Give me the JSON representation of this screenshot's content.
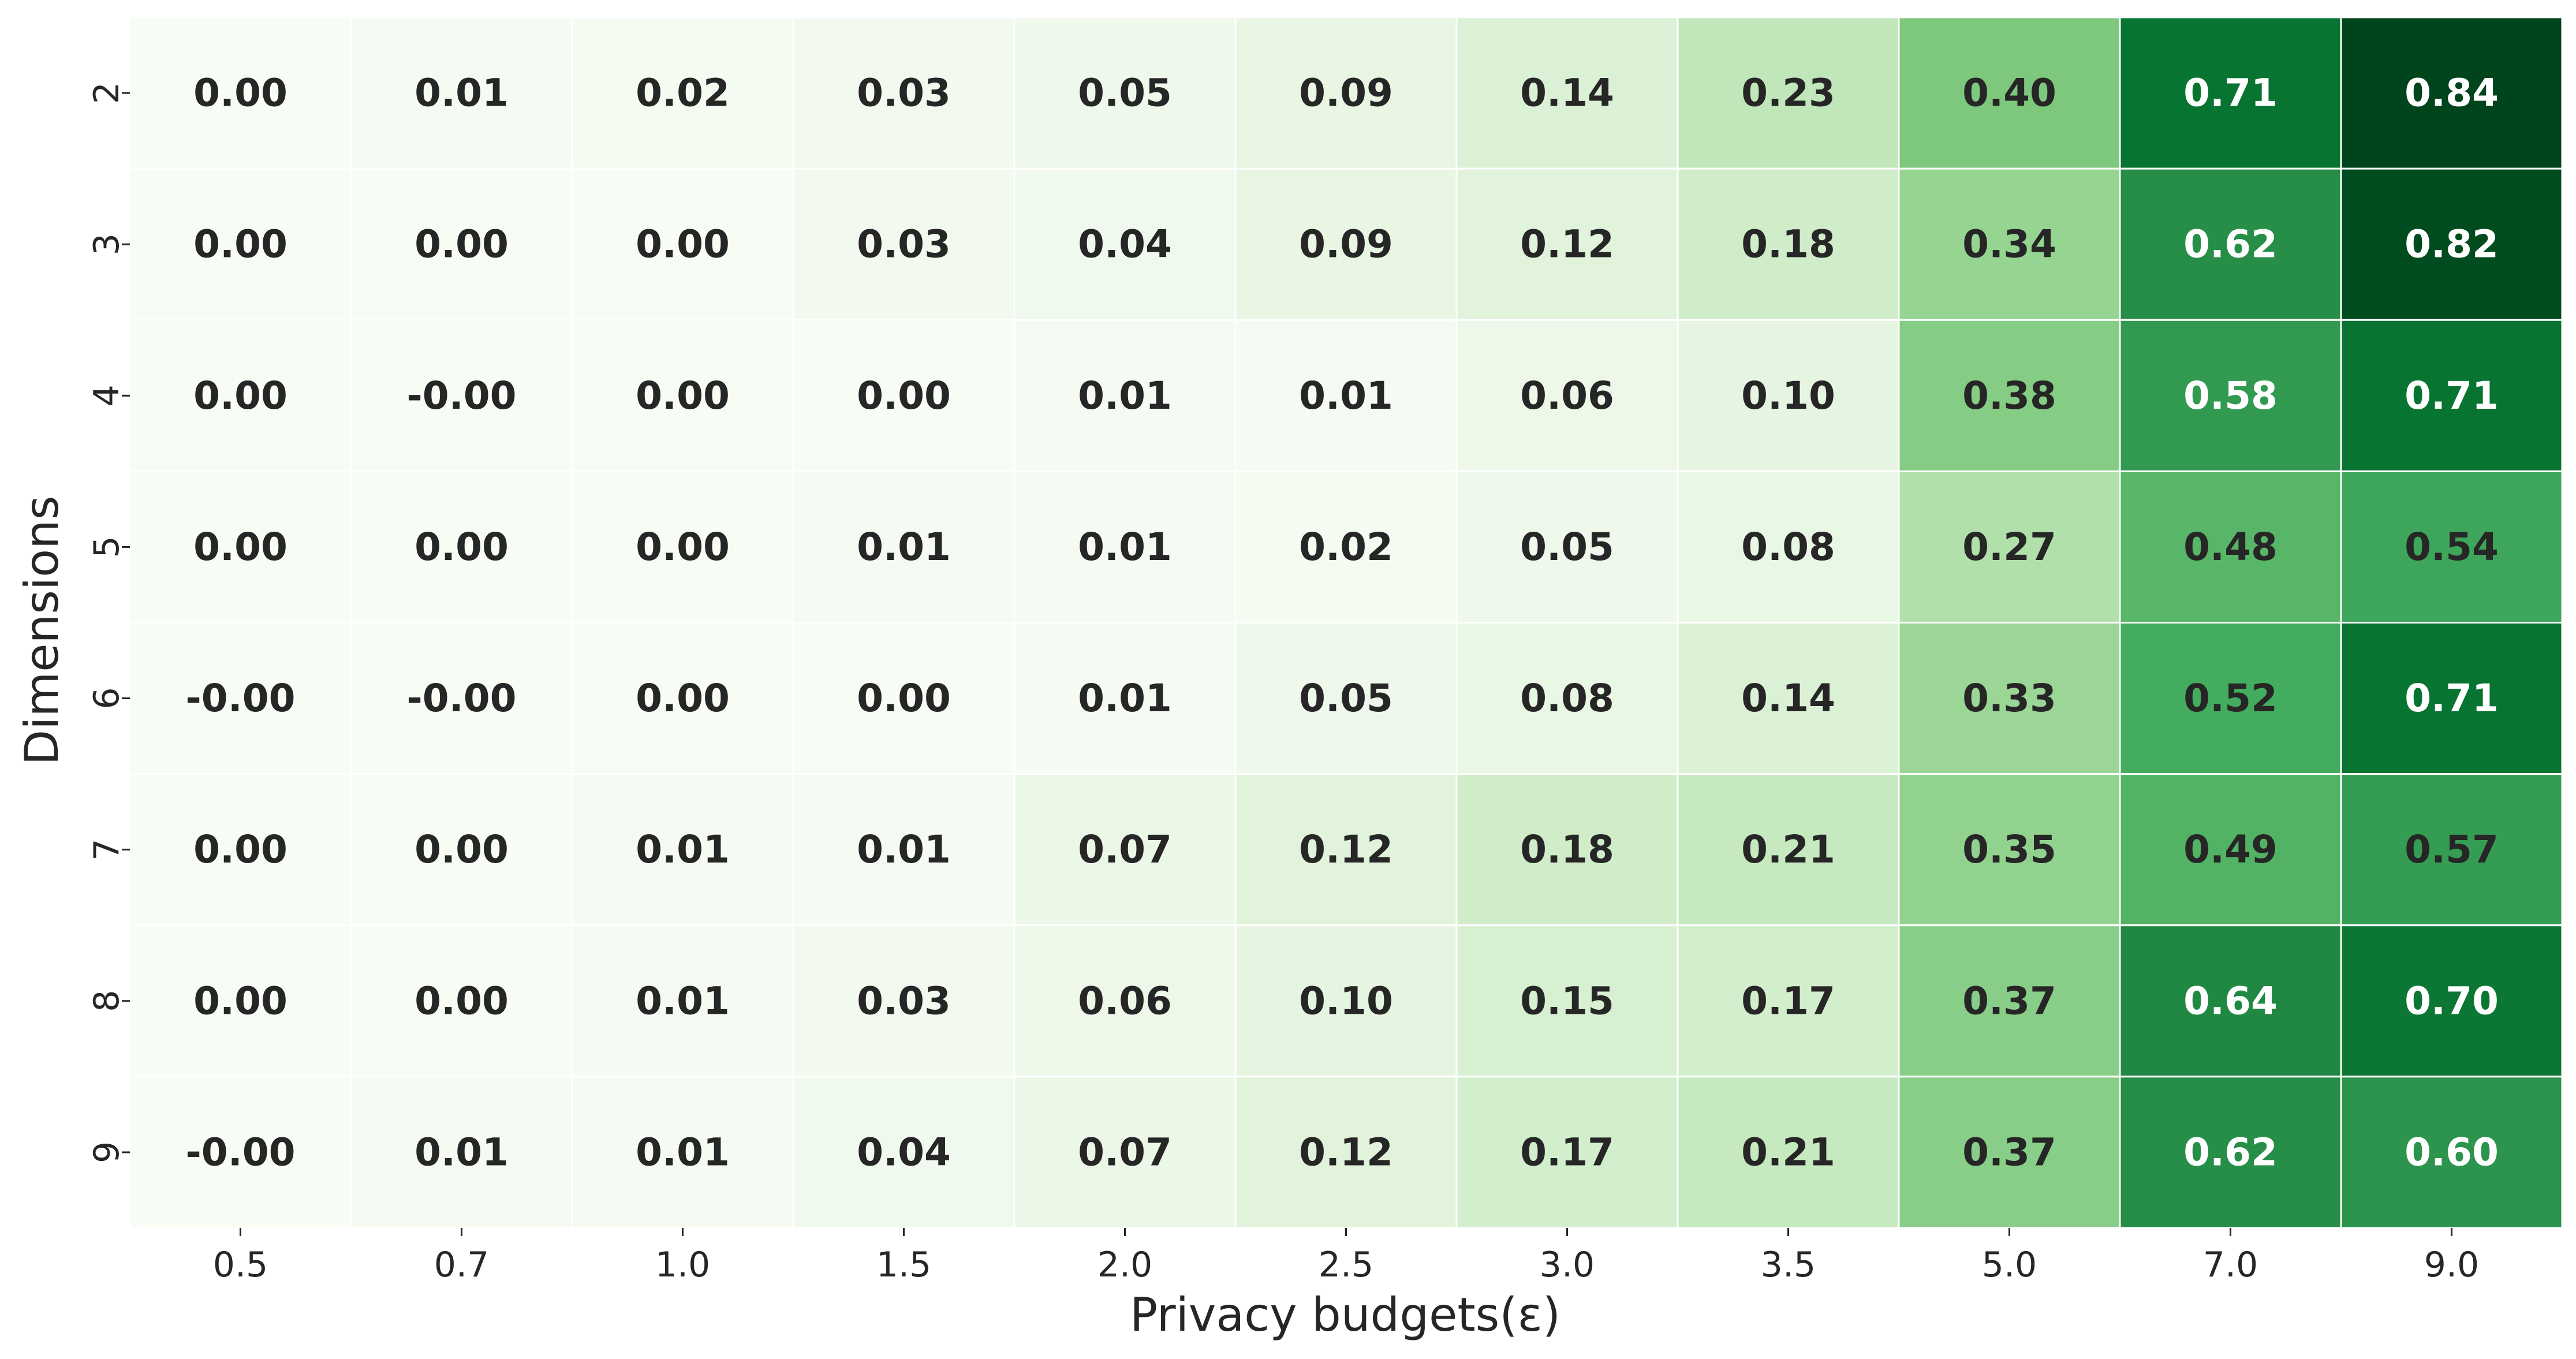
{
  "chart_data": {
    "type": "heatmap",
    "title": "",
    "xlabel": "Privacy budgets(ε)",
    "ylabel": "Dimensions",
    "x_categories": [
      "0.5",
      "0.7",
      "1.0",
      "1.5",
      "2.0",
      "2.5",
      "3.0",
      "3.5",
      "5.0",
      "7.0",
      "9.0"
    ],
    "y_categories": [
      "2",
      "3",
      "4",
      "5",
      "6",
      "7",
      "8",
      "9"
    ],
    "values": [
      [
        0.0,
        0.01,
        0.02,
        0.03,
        0.05,
        0.09,
        0.14,
        0.23,
        0.4,
        0.71,
        0.84
      ],
      [
        0.0,
        0.0,
        0.0,
        0.03,
        0.04,
        0.09,
        0.12,
        0.18,
        0.34,
        0.62,
        0.82
      ],
      [
        0.0,
        -0.0,
        0.0,
        0.0,
        0.01,
        0.01,
        0.06,
        0.1,
        0.38,
        0.58,
        0.71
      ],
      [
        0.0,
        0.0,
        0.0,
        0.01,
        0.01,
        0.02,
        0.05,
        0.08,
        0.27,
        0.48,
        0.54
      ],
      [
        -0.0,
        -0.0,
        0.0,
        0.0,
        0.01,
        0.05,
        0.08,
        0.14,
        0.33,
        0.52,
        0.71
      ],
      [
        0.0,
        0.0,
        0.01,
        0.01,
        0.07,
        0.12,
        0.18,
        0.21,
        0.35,
        0.49,
        0.57
      ],
      [
        0.0,
        0.0,
        0.01,
        0.03,
        0.06,
        0.1,
        0.15,
        0.17,
        0.37,
        0.64,
        0.7
      ],
      [
        -0.0,
        0.01,
        0.01,
        0.04,
        0.07,
        0.12,
        0.17,
        0.21,
        0.37,
        0.62,
        0.6
      ]
    ],
    "cell_labels": [
      [
        "0.00",
        "0.01",
        "0.02",
        "0.03",
        "0.05",
        "0.09",
        "0.14",
        "0.23",
        "0.40",
        "0.71",
        "0.84"
      ],
      [
        "0.00",
        "0.00",
        "0.00",
        "0.03",
        "0.04",
        "0.09",
        "0.12",
        "0.18",
        "0.34",
        "0.62",
        "0.82"
      ],
      [
        "0.00",
        "-0.00",
        "0.00",
        "0.00",
        "0.01",
        "0.01",
        "0.06",
        "0.10",
        "0.38",
        "0.58",
        "0.71"
      ],
      [
        "0.00",
        "0.00",
        "0.00",
        "0.01",
        "0.01",
        "0.02",
        "0.05",
        "0.08",
        "0.27",
        "0.48",
        "0.54"
      ],
      [
        "-0.00",
        "-0.00",
        "0.00",
        "0.00",
        "0.01",
        "0.05",
        "0.08",
        "0.14",
        "0.33",
        "0.52",
        "0.71"
      ],
      [
        "0.00",
        "0.00",
        "0.01",
        "0.01",
        "0.07",
        "0.12",
        "0.18",
        "0.21",
        "0.35",
        "0.49",
        "0.57"
      ],
      [
        "0.00",
        "0.00",
        "0.01",
        "0.03",
        "0.06",
        "0.10",
        "0.15",
        "0.17",
        "0.37",
        "0.64",
        "0.70"
      ],
      [
        "-0.00",
        "0.01",
        "0.01",
        "0.04",
        "0.07",
        "0.12",
        "0.17",
        "0.21",
        "0.37",
        "0.62",
        "0.60"
      ]
    ],
    "colormap": "Greens",
    "color_range": [
      0,
      0.84
    ],
    "colors": {
      "low": "#f7fcf5",
      "high": "#00441b",
      "text_dark": "#262626",
      "text_light": "#ffffff",
      "gridline": "#ffffff"
    },
    "colorbar": false,
    "grid": true
  }
}
